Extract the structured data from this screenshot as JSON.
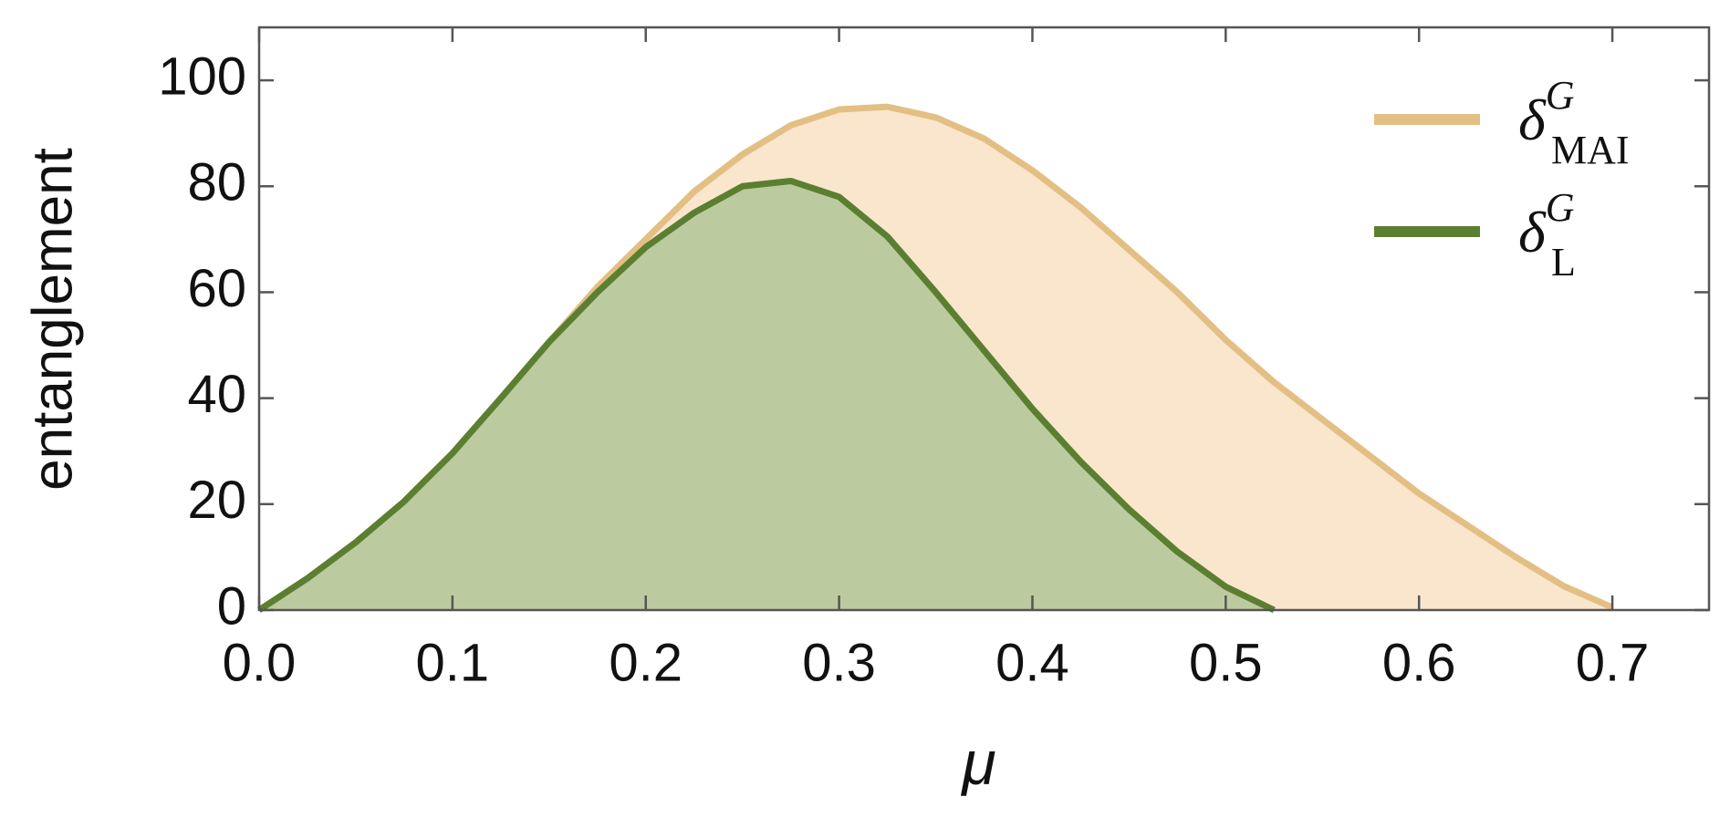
{
  "chart_data": {
    "type": "area",
    "x_label": "μ",
    "y_label": "entanglement",
    "x": [
      0,
      0.025,
      0.05,
      0.075,
      0.1,
      0.125,
      0.15,
      0.175,
      0.2,
      0.225,
      0.25,
      0.275,
      0.3,
      0.325,
      0.35,
      0.375,
      0.4,
      0.425,
      0.45,
      0.475,
      0.5,
      0.525,
      0.55,
      0.575,
      0.6,
      0.625,
      0.65,
      0.675,
      0.7
    ],
    "series": [
      {
        "name": "δ^G_MAI",
        "color": "#e3bf84",
        "fill": "#f9e6cd",
        "values": [
          0,
          6,
          12.8,
          20.5,
          29.6,
          40,
          50.6,
          61,
          70,
          79,
          86,
          91.5,
          94.5,
          95,
          93,
          89,
          83,
          76,
          68,
          60,
          51,
          43,
          36,
          29,
          22,
          16,
          10,
          4.5,
          0.5
        ]
      },
      {
        "name": "δ^G_L",
        "color": "#5b7f30",
        "fill": "#bccb9f",
        "values": [
          0,
          6,
          12.8,
          20.5,
          29.6,
          40,
          50.6,
          60,
          68.5,
          75,
          80,
          81,
          78,
          70.5,
          60,
          49,
          38,
          28,
          19,
          11,
          4.4,
          0,
          null,
          null,
          null,
          null,
          null,
          null,
          null
        ]
      }
    ],
    "xlim": [
      0,
      0.75
    ],
    "ylim": [
      0,
      110
    ],
    "xticks": [
      {
        "value": 0,
        "label": "0.0"
      },
      0.1,
      0.2,
      0.3,
      0.4,
      0.5,
      0.6,
      0.7
    ],
    "yticks": [
      0,
      20,
      40,
      60,
      80,
      100
    ],
    "legend": "upper right"
  }
}
